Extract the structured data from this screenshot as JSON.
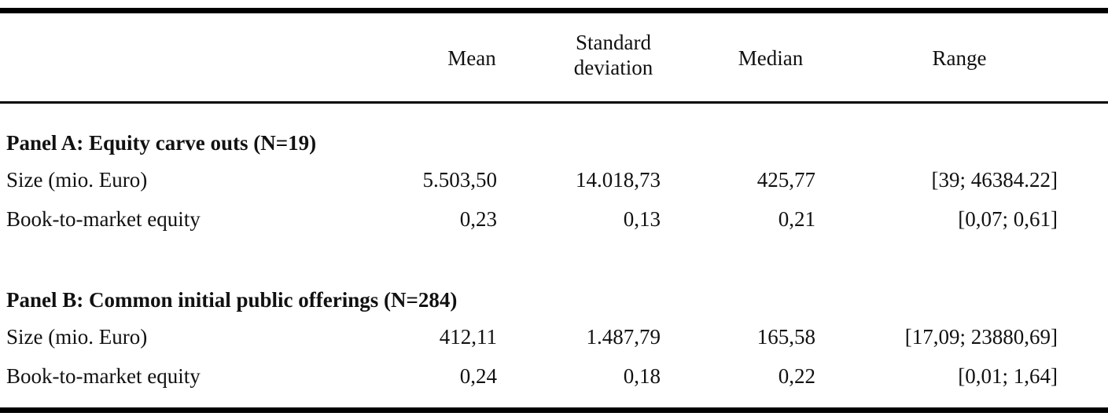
{
  "table": {
    "columns": {
      "mean": "Mean",
      "sd_line1": "Standard",
      "sd_line2": "deviation",
      "median": "Median",
      "range": "Range"
    },
    "panels": [
      {
        "title": "Panel A: Equity carve outs (N=19)",
        "rows": [
          {
            "label": "Size (mio. Euro)",
            "mean": "5.503,50",
            "sd": "14.018,73",
            "median": "425,77",
            "range": "[39; 46384.22]"
          },
          {
            "label": "Book-to-market equity",
            "mean": "0,23",
            "sd": "0,13",
            "median": "0,21",
            "range": "[0,07; 0,61]"
          }
        ]
      },
      {
        "title": "Panel B: Common initial public offerings (N=284)",
        "rows": [
          {
            "label": "Size (mio. Euro)",
            "mean": "412,11",
            "sd": "1.487,79",
            "median": "165,58",
            "range": "[17,09; 23880,69]"
          },
          {
            "label": "Book-to-market equity",
            "mean": "0,24",
            "sd": "0,18",
            "median": "0,22",
            "range": "[0,01; 1,64]"
          }
        ]
      }
    ]
  }
}
